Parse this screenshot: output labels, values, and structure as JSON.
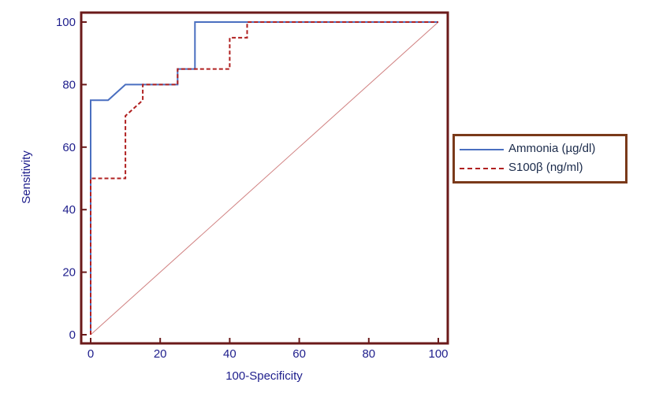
{
  "chart_data": {
    "type": "line",
    "xlabel": "100-Specificity",
    "ylabel": "Sensitivity",
    "xlim": [
      0,
      100
    ],
    "ylim": [
      0,
      100
    ],
    "xticks": [
      "0",
      "20",
      "40",
      "60",
      "80",
      "100"
    ],
    "yticks": [
      "0",
      "20",
      "40",
      "60",
      "80",
      "100"
    ],
    "grid": false,
    "legend": "right",
    "series": [
      {
        "name": "Ammonia (µg/dl)",
        "color": "#4a6fc0",
        "style": "solid",
        "x": [
          0,
          0,
          5,
          10,
          25,
          25,
          30,
          30,
          100
        ],
        "y": [
          0,
          75,
          75,
          80,
          80,
          85,
          85,
          100,
          100
        ]
      },
      {
        "name": "S100β (ng/ml)",
        "color": "#b02020",
        "style": "dashed",
        "x": [
          0,
          0,
          10,
          10,
          15,
          15,
          25,
          25,
          40,
          40,
          45,
          45,
          100
        ],
        "y": [
          0,
          50,
          50,
          70,
          75,
          80,
          80,
          85,
          85,
          95,
          95,
          100,
          100
        ]
      }
    ],
    "reference_line": {
      "x": [
        0,
        100
      ],
      "y": [
        0,
        100
      ],
      "color": "#d08080"
    },
    "frame_color": "#6b1a1a"
  }
}
